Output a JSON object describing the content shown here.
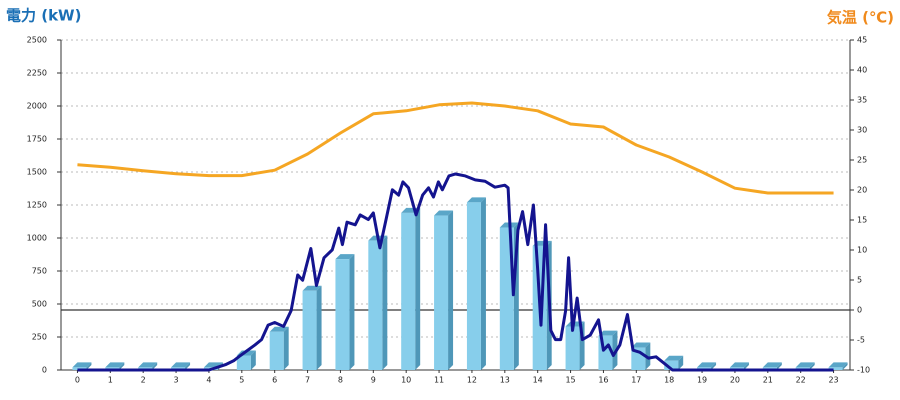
{
  "chart_data": {
    "type": "bar",
    "title": "電力 (kW)",
    "y2_title": "気温 (℃)",
    "title_color": "#1a6fb5",
    "y2_title_color": "#f08a1c",
    "categories": [
      "0",
      "1",
      "2",
      "3",
      "4",
      "5",
      "6",
      "7",
      "8",
      "9",
      "10",
      "11",
      "12",
      "13",
      "14",
      "15",
      "16",
      "17",
      "18",
      "19",
      "20",
      "21",
      "22",
      "23"
    ],
    "xlim": [
      -0.5,
      23.5
    ],
    "ylim": [
      0,
      2500
    ],
    "yticks": [
      0,
      250,
      500,
      750,
      1000,
      1250,
      1500,
      1750,
      2000,
      2250,
      2500
    ],
    "y2lim": [
      -10,
      45
    ],
    "y2ticks": [
      -10,
      -5,
      0,
      5,
      10,
      15,
      20,
      25,
      30,
      35,
      40,
      45
    ],
    "grid": true,
    "series": [
      {
        "type": "bar",
        "color": "#87ceeb",
        "values": [
          20,
          20,
          20,
          20,
          20,
          110,
          290,
          600,
          840,
          980,
          1190,
          1170,
          1270,
          1080,
          940,
          330,
          260,
          170,
          70,
          20,
          20,
          20,
          20,
          20
        ]
      },
      {
        "type": "line",
        "color": "#14148f",
        "x": [
          0,
          4.0,
          4.5,
          4.75,
          4.96,
          5.4,
          5.6,
          5.8,
          6.0,
          6.27,
          6.5,
          6.7,
          6.85,
          7.1,
          7.27,
          7.5,
          7.75,
          7.95,
          8.06,
          8.2,
          8.45,
          8.6,
          8.85,
          9.0,
          9.2,
          9.37,
          9.58,
          9.77,
          9.9,
          10.07,
          10.3,
          10.5,
          10.68,
          10.83,
          10.98,
          11.1,
          11.3,
          11.5,
          11.8,
          12.1,
          12.4,
          12.7,
          13.0,
          13.1,
          13.26,
          13.4,
          13.54,
          13.7,
          13.87,
          14.0,
          14.1,
          14.24,
          14.4,
          14.54,
          14.7,
          14.85,
          14.94,
          15.06,
          15.2,
          15.36,
          15.6,
          15.85,
          16.0,
          16.15,
          16.3,
          16.5,
          16.73,
          16.9,
          17.1,
          17.37,
          17.6,
          17.8,
          18.1,
          23
        ],
        "values": [
          0,
          0,
          40,
          70,
          110,
          190,
          230,
          340,
          360,
          330,
          450,
          720,
          680,
          920,
          640,
          850,
          910,
          1075,
          950,
          1120,
          1100,
          1175,
          1140,
          1190,
          925,
          1120,
          1365,
          1325,
          1425,
          1380,
          1175,
          1325,
          1380,
          1310,
          1425,
          1365,
          1470,
          1485,
          1470,
          1440,
          1430,
          1385,
          1400,
          1380,
          570,
          1060,
          1200,
          950,
          1250,
          760,
          340,
          1100,
          300,
          230,
          230,
          450,
          850,
          300,
          545,
          230,
          265,
          380,
          150,
          190,
          110,
          190,
          420,
          150,
          135,
          90,
          100,
          60,
          0,
          0
        ]
      },
      {
        "type": "line",
        "axis": "y2",
        "color": "#f5a623",
        "values": [
          24.2,
          23.8,
          23.2,
          22.7,
          22.4,
          22.4,
          23.3,
          26,
          29.5,
          32.7,
          33.2,
          34.2,
          34.5,
          34,
          33.2,
          31,
          30.5,
          27.5,
          25.5,
          23,
          20.3,
          19.5,
          19.5,
          19.5
        ]
      }
    ]
  }
}
